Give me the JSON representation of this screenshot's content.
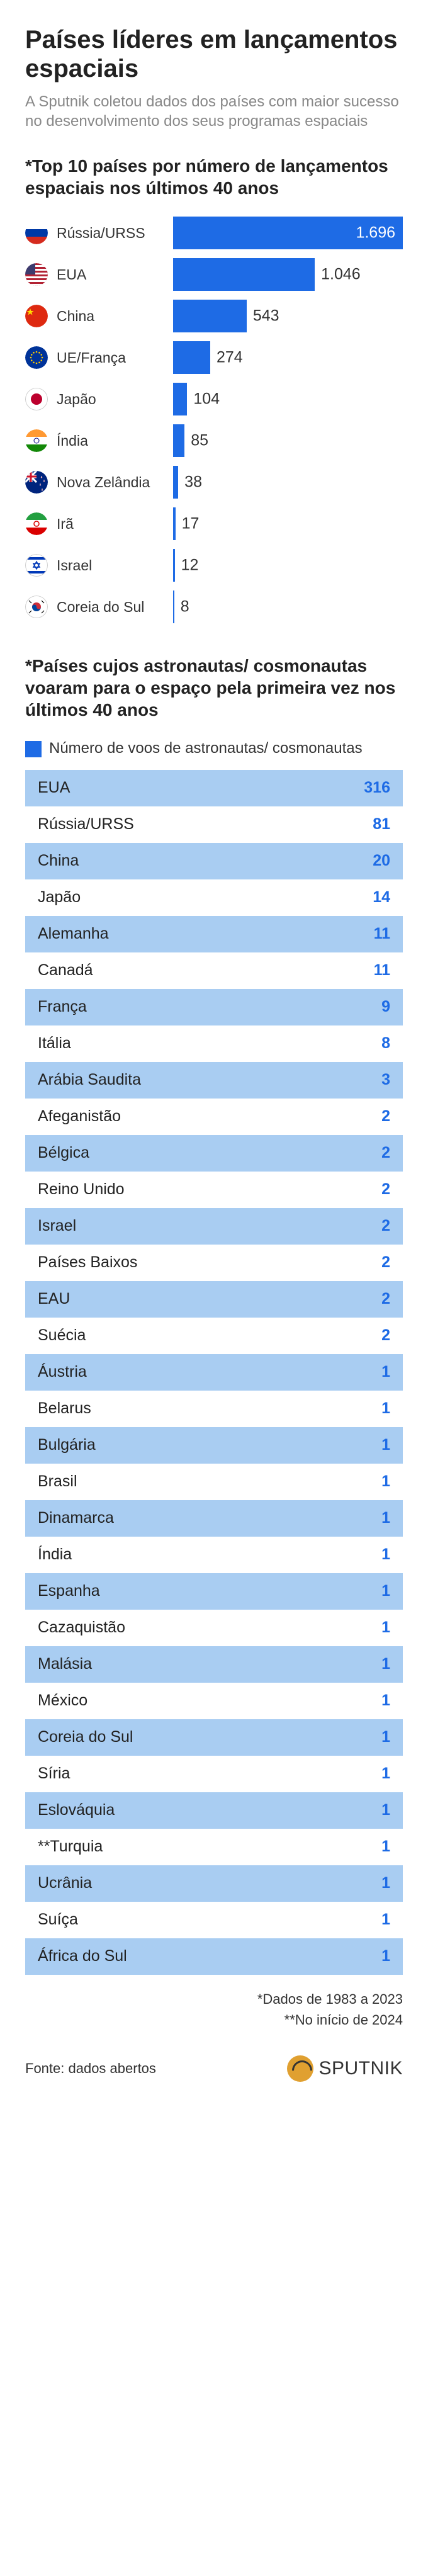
{
  "title": "Países líderes em lançamentos espaciais",
  "subtitle": "A Sputnik coletou dados dos países com maior sucesso no desenvolvimento dos seus programas espaciais",
  "launches": {
    "heading": "*Top 10 países por número de lançamentos espaciais nos últimos 40 anos",
    "bar_color": "#1e6be5",
    "max": 1696,
    "track_width": 365,
    "rows": [
      {
        "name": "Rússia/URSS",
        "value": 1696,
        "label": "1.696",
        "inside": true,
        "flag": "ru"
      },
      {
        "name": "EUA",
        "value": 1046,
        "label": "1.046",
        "inside": false,
        "flag": "us"
      },
      {
        "name": "China",
        "value": 543,
        "label": "543",
        "inside": false,
        "flag": "cn"
      },
      {
        "name": "UE/França",
        "value": 274,
        "label": "274",
        "inside": false,
        "flag": "eu"
      },
      {
        "name": "Japão",
        "value": 104,
        "label": "104",
        "inside": false,
        "flag": "jp"
      },
      {
        "name": "Índia",
        "value": 85,
        "label": "85",
        "inside": false,
        "flag": "in"
      },
      {
        "name": "Nova Zelândia",
        "value": 38,
        "label": "38",
        "inside": false,
        "flag": "nz"
      },
      {
        "name": "Irã",
        "value": 17,
        "label": "17",
        "inside": false,
        "flag": "ir"
      },
      {
        "name": "Israel",
        "value": 12,
        "label": "12",
        "inside": false,
        "flag": "il"
      },
      {
        "name": "Coreia do Sul",
        "value": 8,
        "label": "8",
        "inside": false,
        "flag": "kr"
      }
    ]
  },
  "astronauts": {
    "heading": "*Países cujos astronautas/ cosmonautas voaram para o espaço pela primeira vez nos últimos 40 anos",
    "legend_color": "#1e6be5",
    "legend_text": "Número de voos de astronautas/ cosmonautas",
    "row_bg_even": "#a9cdf2",
    "row_bg_odd": "#ffffff",
    "value_color": "#1e6be5",
    "rows": [
      {
        "country": "EUA",
        "value": "316"
      },
      {
        "country": "Rússia/URSS",
        "value": "81"
      },
      {
        "country": "China",
        "value": "20"
      },
      {
        "country": "Japão",
        "value": "14"
      },
      {
        "country": "Alemanha",
        "value": "11"
      },
      {
        "country": "Canadá",
        "value": "11"
      },
      {
        "country": "França",
        "value": "9"
      },
      {
        "country": "Itália",
        "value": "8"
      },
      {
        "country": "Arábia Saudita",
        "value": "3"
      },
      {
        "country": "Afeganistão",
        "value": "2"
      },
      {
        "country": "Bélgica",
        "value": "2"
      },
      {
        "country": "Reino Unido",
        "value": "2"
      },
      {
        "country": "Israel",
        "value": "2"
      },
      {
        "country": "Países Baixos",
        "value": "2"
      },
      {
        "country": "EAU",
        "value": "2"
      },
      {
        "country": "Suécia",
        "value": "2"
      },
      {
        "country": "Áustria",
        "value": "1"
      },
      {
        "country": "Belarus",
        "value": "1"
      },
      {
        "country": "Bulgária",
        "value": "1"
      },
      {
        "country": "Brasil",
        "value": "1"
      },
      {
        "country": "Dinamarca",
        "value": "1"
      },
      {
        "country": "Índia",
        "value": "1"
      },
      {
        "country": "Espanha",
        "value": "1"
      },
      {
        "country": "Cazaquistão",
        "value": "1"
      },
      {
        "country": "Malásia",
        "value": "1"
      },
      {
        "country": "México",
        "value": "1"
      },
      {
        "country": "Coreia do Sul",
        "value": "1"
      },
      {
        "country": "Síria",
        "value": "1"
      },
      {
        "country": "Eslováquia",
        "value": "1"
      },
      {
        "country": "**Turquia",
        "value": "1"
      },
      {
        "country": "Ucrânia",
        "value": "1"
      },
      {
        "country": "Suíça",
        "value": "1"
      },
      {
        "country": "África do Sul",
        "value": "1"
      }
    ]
  },
  "footnotes": [
    "*Dados de 1983 a 2023",
    "**No início de 2024"
  ],
  "source": "Fonte: dados abertos",
  "brand": "SPUTNIK"
}
